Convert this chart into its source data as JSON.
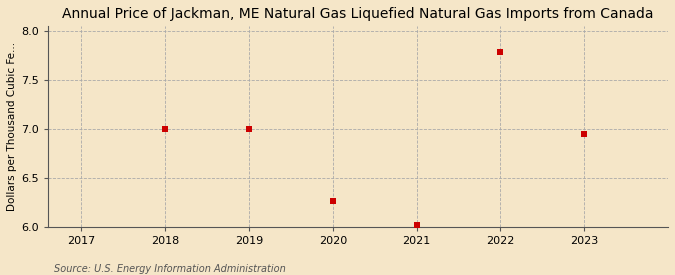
{
  "title": "Annual Price of Jackman, ME Natural Gas Liquefied Natural Gas Imports from Canada",
  "ylabel": "Dollars per Thousand Cubic Fe...",
  "source": "Source: U.S. Energy Information Administration",
  "background_color": "#f5e6c8",
  "plot_background_color": "#f5e6c8",
  "x_values": [
    2018,
    2019,
    2020,
    2021,
    2022,
    2023
  ],
  "y_values": [
    7.0,
    7.0,
    6.27,
    6.02,
    7.79,
    6.95
  ],
  "xlim": [
    2016.6,
    2024.0
  ],
  "ylim": [
    6.0,
    8.05
  ],
  "yticks": [
    6.0,
    6.5,
    7.0,
    7.5,
    8.0
  ],
  "xticks": [
    2017,
    2018,
    2019,
    2020,
    2021,
    2022,
    2023
  ],
  "marker_color": "#cc0000",
  "marker": "s",
  "marker_size": 4,
  "title_fontsize": 10,
  "label_fontsize": 7.5,
  "tick_fontsize": 8,
  "source_fontsize": 7
}
